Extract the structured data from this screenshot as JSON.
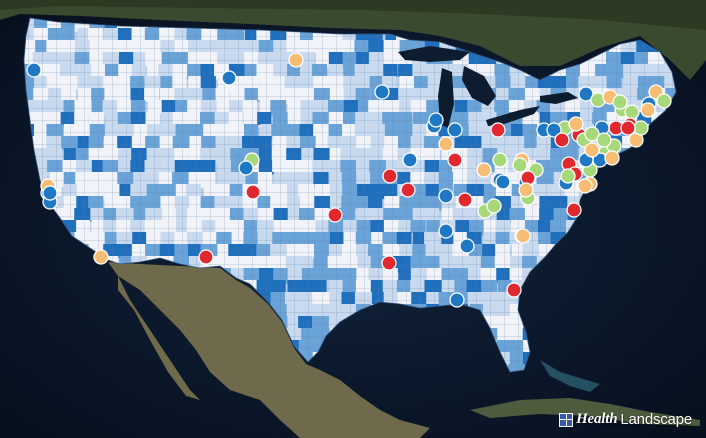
{
  "brand": {
    "name_part1": "Health",
    "name_part2": "Landscape",
    "icon": "grid-logo-icon"
  },
  "colors": {
    "ocean": "#0b1a2e",
    "land_mexico": "#6f6a4c",
    "land_canada": "#3a4a2f",
    "us_base": "#b9cfe9",
    "county_dark": "#1f6fbf",
    "county_medium": "#6aa3d8",
    "county_light": "#c9d9ee",
    "county_white": "#f1f3f8",
    "county_border": "#5c7fa8",
    "marker_red": "#e0282e",
    "marker_blue": "#1f78c4",
    "marker_green": "#a7d97a",
    "marker_orange": "#f7bd72",
    "marker_stroke": "#ffffff"
  },
  "markers": [
    {
      "color": "blue"
    },
    {
      "color": "blue"
    },
    {
      "color": "orange"
    },
    {
      "color": "blue"
    },
    {
      "color": "green"
    },
    {
      "color": "red"
    },
    {
      "color": "blue"
    },
    {
      "color": "red"
    },
    {
      "color": "blue"
    },
    {
      "color": "red"
    },
    {
      "color": "orange"
    },
    {
      "color": "blue"
    },
    {
      "color": "blue"
    },
    {
      "color": "blue"
    },
    {
      "color": "orange"
    },
    {
      "color": "blue"
    },
    {
      "color": "blue"
    },
    {
      "color": "orange"
    },
    {
      "color": "green"
    },
    {
      "color": "red"
    },
    {
      "color": "red"
    },
    {
      "color": "blue"
    },
    {
      "color": "red"
    },
    {
      "color": "red"
    },
    {
      "color": "blue"
    },
    {
      "color": "blue"
    },
    {
      "color": "red"
    },
    {
      "color": "orange"
    },
    {
      "color": "green"
    },
    {
      "color": "blue"
    },
    {
      "color": "orange"
    },
    {
      "color": "green"
    },
    {
      "color": "red"
    },
    {
      "color": "blue"
    },
    {
      "color": "orange"
    },
    {
      "color": "green"
    },
    {
      "color": "red"
    },
    {
      "color": "red"
    },
    {
      "color": "green"
    },
    {
      "color": "orange"
    },
    {
      "color": "green"
    },
    {
      "color": "blue"
    },
    {
      "color": "green"
    },
    {
      "color": "orange"
    },
    {
      "color": "green"
    },
    {
      "color": "red"
    },
    {
      "color": "blue"
    },
    {
      "color": "green"
    },
    {
      "color": "orange"
    },
    {
      "color": "green"
    },
    {
      "color": "orange"
    },
    {
      "color": "blue"
    },
    {
      "color": "green"
    },
    {
      "color": "green"
    },
    {
      "color": "red"
    },
    {
      "color": "green"
    },
    {
      "color": "orange"
    },
    {
      "color": "red"
    },
    {
      "color": "red"
    },
    {
      "color": "blue"
    },
    {
      "color": "orange"
    },
    {
      "color": "green"
    },
    {
      "color": "blue"
    },
    {
      "color": "red"
    },
    {
      "color": "green"
    },
    {
      "color": "orange"
    },
    {
      "color": "green"
    },
    {
      "color": "red"
    },
    {
      "color": "green"
    },
    {
      "color": "blue"
    },
    {
      "color": "orange"
    },
    {
      "color": "red"
    },
    {
      "color": "green"
    },
    {
      "color": "blue"
    },
    {
      "color": "green"
    },
    {
      "color": "orange"
    },
    {
      "color": "red"
    },
    {
      "color": "blue"
    },
    {
      "color": "orange"
    },
    {
      "color": "green"
    },
    {
      "color": "blue"
    },
    {
      "color": "red"
    },
    {
      "color": "orange"
    }
  ]
}
